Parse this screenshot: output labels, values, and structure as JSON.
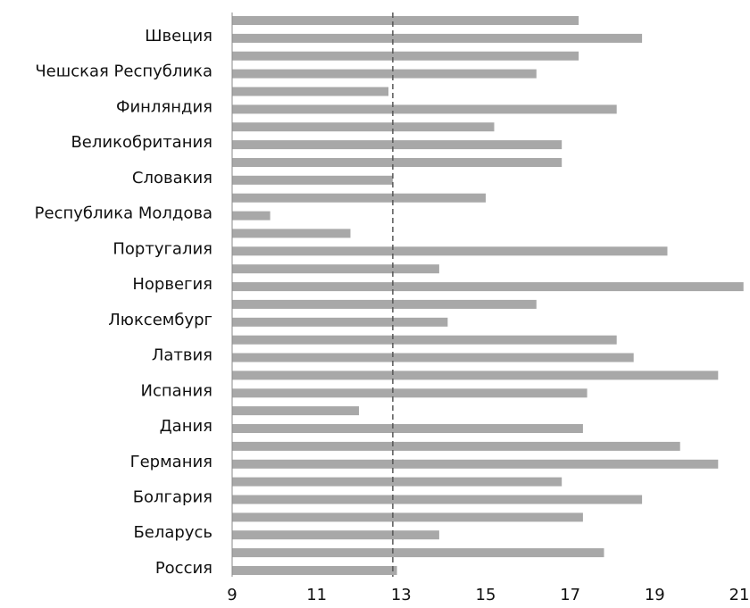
{
  "chart_data": {
    "type": "bar",
    "orientation": "horizontal",
    "title": "",
    "xlabel": "",
    "ylabel": "",
    "xlim": [
      9,
      21
    ],
    "xticks": [
      9,
      11,
      13,
      15,
      17,
      19,
      21
    ],
    "labeled_categories": [
      "Швеция",
      "Чешская Республика",
      "Финляндия",
      "Великобритания",
      "Словакия",
      "Республика Молдова",
      "Португалия",
      "Норвегия",
      "Люксембург",
      "Латвия",
      "Испания",
      "Дания",
      "Германия",
      "Болгария",
      "Беларусь",
      "Россия"
    ],
    "values": [
      17.2,
      18.7,
      17.2,
      16.2,
      12.7,
      18.1,
      15.2,
      16.8,
      16.8,
      12.8,
      15.0,
      9.9,
      11.8,
      19.3,
      13.9,
      21.1,
      16.2,
      14.1,
      18.1,
      18.5,
      20.5,
      17.4,
      12.0,
      17.3,
      19.6,
      20.5,
      16.8,
      18.7,
      17.3,
      13.9,
      17.8,
      12.9
    ],
    "reference_line": 12.8,
    "bar_color": "#a8a8a8",
    "reference_line_color": "#555555",
    "grid": false,
    "legend": "none"
  }
}
